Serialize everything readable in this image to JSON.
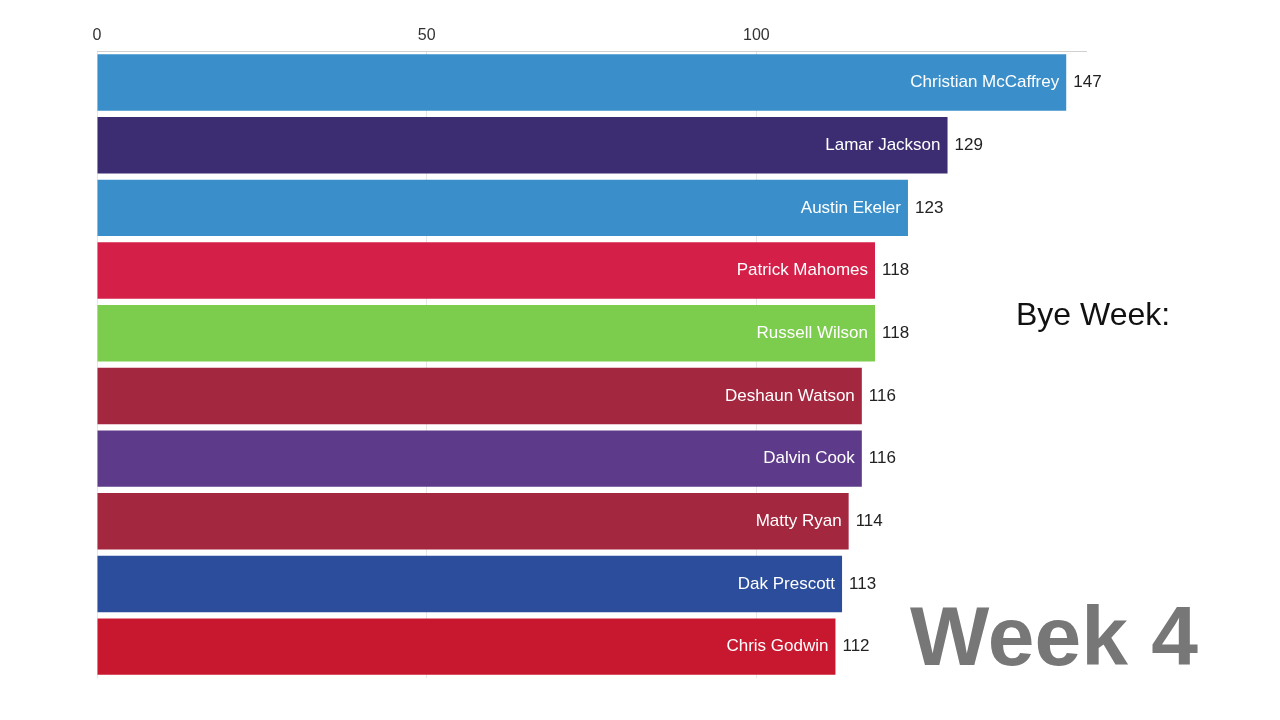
{
  "chart_data": {
    "type": "bar",
    "orientation": "horizontal",
    "categories": [
      "Christian McCaffrey",
      "Lamar Jackson",
      "Austin Ekeler",
      "Patrick Mahomes",
      "Russell Wilson",
      "Deshaun Watson",
      "Dalvin Cook",
      "Matty Ryan",
      "Dak Prescott",
      "Chris Godwin"
    ],
    "values": [
      147,
      129,
      123,
      118,
      118,
      116,
      116,
      114,
      113,
      112
    ],
    "colors": [
      "#3a8fca",
      "#3c2d72",
      "#3a8fca",
      "#d42049",
      "#7ccd4d",
      "#a3273f",
      "#5e3b8a",
      "#a3273f",
      "#2b4d9b",
      "#c8182f"
    ],
    "xlim": [
      0,
      150
    ],
    "xticks": [
      0,
      50,
      100
    ],
    "grid": "x",
    "legend": false,
    "data_labels": true,
    "annotations": [
      "Bye Week:",
      "Week 4"
    ]
  }
}
